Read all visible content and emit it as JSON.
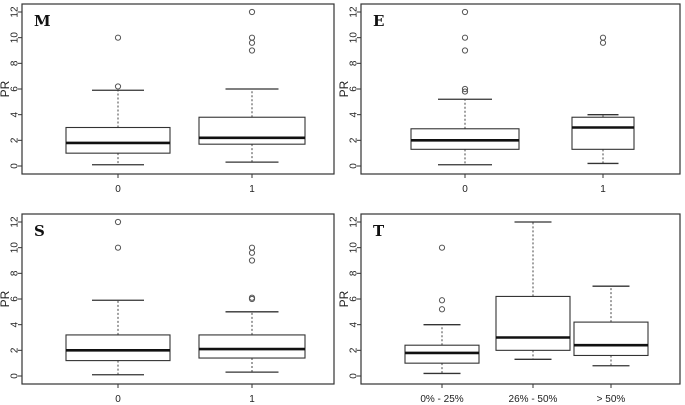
{
  "chart_data": [
    {
      "type": "box",
      "title": "M",
      "ylabel": "PR",
      "ylim": [
        0,
        12
      ],
      "yticks": [
        0,
        2,
        4,
        6,
        8,
        10,
        12
      ],
      "categories": [
        "0",
        "1"
      ],
      "boxes": [
        {
          "min": 0.1,
          "q1": 1.0,
          "median": 1.8,
          "q3": 3.0,
          "max": 5.9,
          "outliers": [
            6.2,
            10.0
          ]
        },
        {
          "min": 0.3,
          "q1": 1.7,
          "median": 2.2,
          "q3": 3.8,
          "max": 6.0,
          "outliers": [
            9.0,
            9.6,
            10.0,
            12.0
          ]
        }
      ]
    },
    {
      "type": "box",
      "title": "E",
      "ylabel": "PR",
      "ylim": [
        0,
        12
      ],
      "yticks": [
        0,
        2,
        4,
        6,
        8,
        10,
        12
      ],
      "categories": [
        "0",
        "1"
      ],
      "boxes": [
        {
          "min": 0.1,
          "q1": 1.3,
          "median": 2.0,
          "q3": 2.9,
          "max": 5.2,
          "outliers": [
            5.8,
            6.0,
            9.0,
            10.0,
            12.0
          ]
        },
        {
          "min": 0.2,
          "q1": 1.3,
          "median": 3.0,
          "q3": 3.8,
          "max": 4.0,
          "outliers": [
            9.6,
            10.0
          ]
        }
      ]
    },
    {
      "type": "box",
      "title": "S",
      "ylabel": "PR",
      "ylim": [
        0,
        12
      ],
      "yticks": [
        0,
        2,
        4,
        6,
        8,
        10,
        12
      ],
      "categories": [
        "0",
        "1"
      ],
      "boxes": [
        {
          "min": 0.1,
          "q1": 1.2,
          "median": 2.0,
          "q3": 3.2,
          "max": 5.9,
          "outliers": [
            10.0,
            12.0
          ]
        },
        {
          "min": 0.3,
          "q1": 1.4,
          "median": 2.1,
          "q3": 3.2,
          "max": 5.0,
          "outliers": [
            6.0,
            6.1,
            9.0,
            9.6,
            10.0
          ]
        }
      ]
    },
    {
      "type": "box",
      "title": "T",
      "ylabel": "PR",
      "ylim": [
        0,
        12
      ],
      "yticks": [
        0,
        2,
        4,
        6,
        8,
        10,
        12
      ],
      "categories": [
        "0% - 25%",
        "26% - 50%",
        "> 50%"
      ],
      "boxes": [
        {
          "min": 0.2,
          "q1": 1.0,
          "median": 1.8,
          "q3": 2.4,
          "max": 4.0,
          "outliers": [
            5.2,
            5.9,
            10.0
          ]
        },
        {
          "min": 1.3,
          "q1": 2.0,
          "median": 3.0,
          "q3": 6.2,
          "max": 12.0,
          "outliers": []
        },
        {
          "min": 0.8,
          "q1": 1.6,
          "median": 2.4,
          "q3": 4.2,
          "max": 7.0,
          "outliers": []
        }
      ]
    }
  ]
}
